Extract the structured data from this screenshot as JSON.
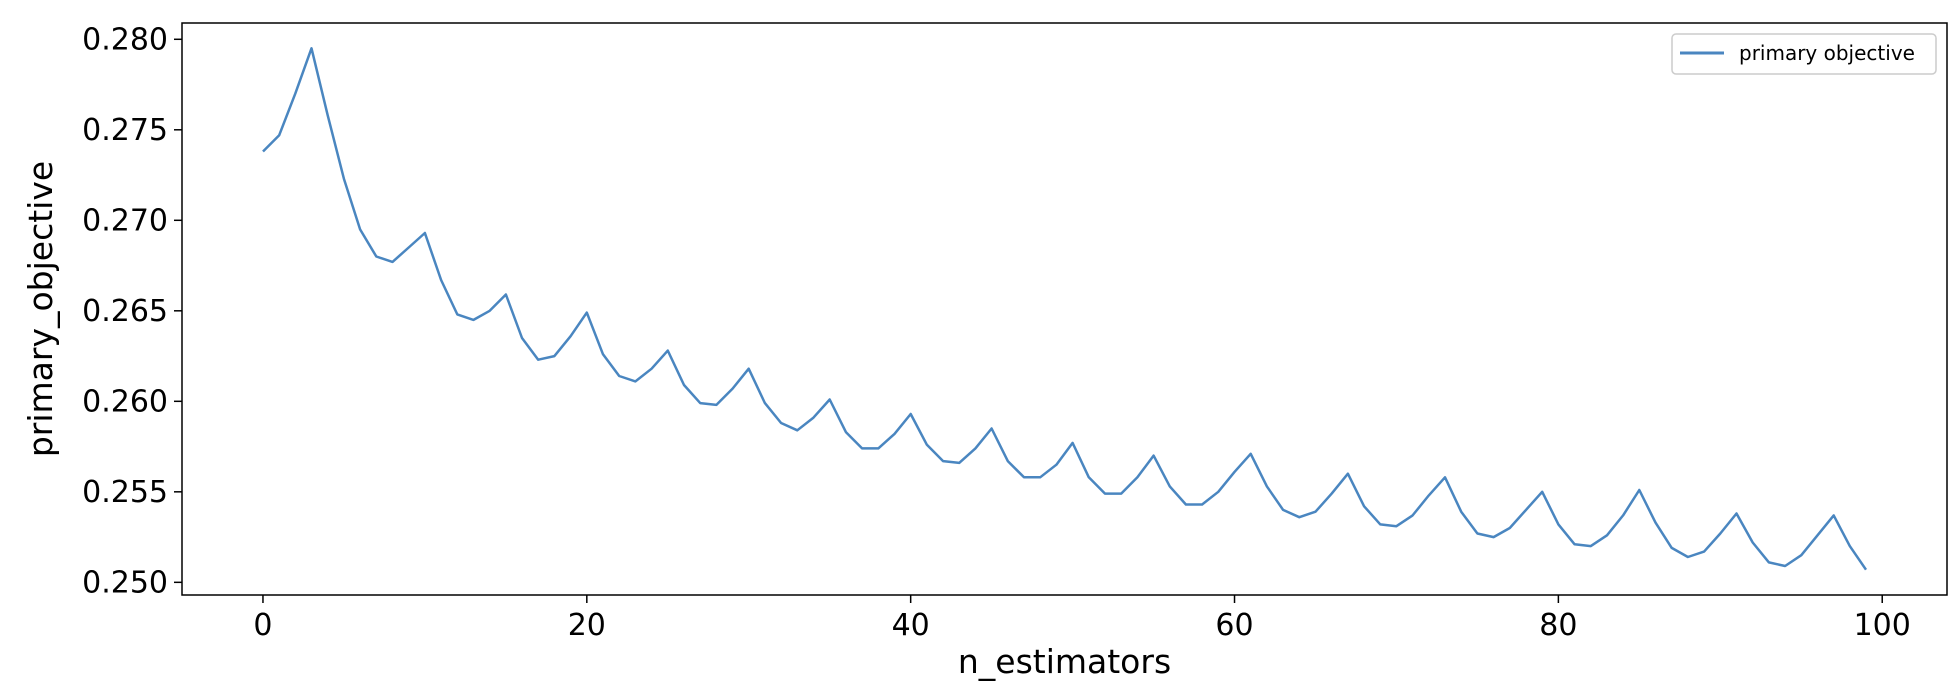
{
  "chart_data": {
    "type": "line",
    "xlabel": "n_estimators",
    "ylabel": "primary_objective",
    "xlim": [
      -5,
      104
    ],
    "ylim": [
      0.2493,
      0.2809
    ],
    "xticks": [
      0,
      20,
      40,
      60,
      80,
      100
    ],
    "xtick_labels": [
      "0",
      "20",
      "40",
      "60",
      "80",
      "100"
    ],
    "yticks": [
      0.25,
      0.255,
      0.26,
      0.265,
      0.27,
      0.275,
      0.28
    ],
    "ytick_labels": [
      "0.250",
      "0.255",
      "0.260",
      "0.265",
      "0.270",
      "0.275",
      "0.280"
    ],
    "grid": false,
    "legend_position": "top-right",
    "series": [
      {
        "name": "primary objective",
        "color": "#4a86c0",
        "x": [
          0,
          1,
          2,
          3,
          4,
          5,
          6,
          7,
          8,
          9,
          10,
          11,
          12,
          13,
          14,
          15,
          16,
          17,
          18,
          19,
          20,
          21,
          22,
          23,
          24,
          25,
          26,
          27,
          28,
          29,
          30,
          31,
          32,
          33,
          34,
          35,
          36,
          37,
          38,
          39,
          40,
          41,
          42,
          43,
          44,
          45,
          46,
          47,
          48,
          49,
          50,
          51,
          52,
          53,
          54,
          55,
          56,
          57,
          58,
          59,
          60,
          61,
          62,
          63,
          64,
          65,
          66,
          67,
          68,
          69,
          70,
          71,
          72,
          73,
          74,
          75,
          76,
          77,
          78,
          79,
          80,
          81,
          82,
          83,
          84,
          85,
          86,
          87,
          88,
          89,
          90,
          91,
          92,
          93,
          94,
          95,
          96,
          97,
          98,
          99
        ],
        "values": [
          0.2738,
          0.2747,
          0.277,
          0.2795,
          0.2758,
          0.2723,
          0.2695,
          0.268,
          0.2677,
          0.2685,
          0.2693,
          0.2667,
          0.2648,
          0.2645,
          0.265,
          0.2659,
          0.2635,
          0.2623,
          0.2625,
          0.2636,
          0.2649,
          0.2626,
          0.2614,
          0.2611,
          0.2618,
          0.2628,
          0.2609,
          0.2599,
          0.2598,
          0.2607,
          0.2618,
          0.2599,
          0.2588,
          0.2584,
          0.2591,
          0.2601,
          0.2583,
          0.2574,
          0.2574,
          0.2582,
          0.2593,
          0.2576,
          0.2567,
          0.2566,
          0.2574,
          0.2585,
          0.2567,
          0.2558,
          0.2558,
          0.2565,
          0.2577,
          0.2558,
          0.2549,
          0.2549,
          0.2558,
          0.257,
          0.2553,
          0.2543,
          0.2543,
          0.255,
          0.2561,
          0.2571,
          0.2553,
          0.254,
          0.2536,
          0.2539,
          0.2549,
          0.256,
          0.2542,
          0.2532,
          0.2531,
          0.2537,
          0.2548,
          0.2558,
          0.2539,
          0.2527,
          0.2525,
          0.253,
          0.254,
          0.255,
          0.2532,
          0.2521,
          0.252,
          0.2526,
          0.2537,
          0.2551,
          0.2533,
          0.2519,
          0.2514,
          0.2517,
          0.2527,
          0.2538,
          0.2522,
          0.2511,
          0.2509,
          0.2515,
          0.2526,
          0.2537,
          0.252,
          0.2507
        ]
      }
    ]
  }
}
